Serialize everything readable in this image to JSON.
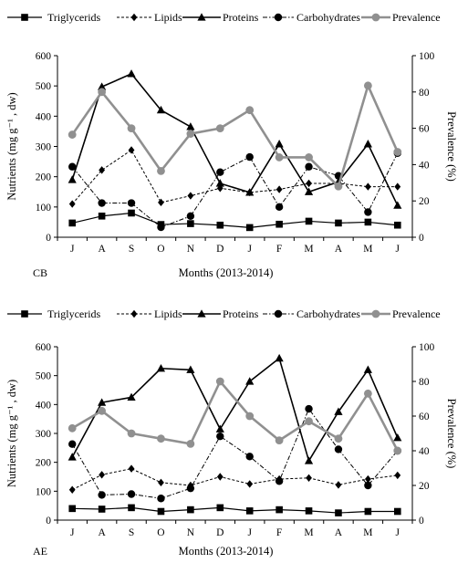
{
  "legend": [
    "Triglycerids",
    "Lipids",
    "Proteins",
    "Carbohydrates",
    "Prevalence"
  ],
  "chart_data": [
    {
      "type": "line",
      "panel_label": "CB",
      "categories": [
        "J",
        "A",
        "S",
        "O",
        "N",
        "D",
        "J",
        "F",
        "M",
        "A",
        "M",
        "J"
      ],
      "xlabel": "Months (2013-2014)",
      "ylabel": "Nutrients (mg g⁻¹ , dw)",
      "ylabel_right": "Prevalence (%)",
      "ylim": [
        0,
        600
      ],
      "yticks": [
        0,
        100,
        200,
        300,
        400,
        500,
        600
      ],
      "ylim_right": [
        0,
        100
      ],
      "yticks_right": [
        0,
        20,
        40,
        60,
        80,
        100
      ],
      "grid": false,
      "legend_position": "top",
      "series": [
        {
          "name": "Triglycerids",
          "axis": "left",
          "values": [
            47,
            70,
            80,
            42,
            45,
            40,
            32,
            43,
            53,
            47,
            50,
            40
          ]
        },
        {
          "name": "Lipids",
          "axis": "left",
          "values": [
            110,
            222,
            288,
            115,
            137,
            162,
            148,
            158,
            178,
            178,
            167,
            167
          ]
        },
        {
          "name": "Proteins",
          "axis": "left",
          "values": [
            190,
            497,
            540,
            420,
            365,
            178,
            148,
            308,
            150,
            183,
            308,
            105
          ]
        },
        {
          "name": "Carbohydrates",
          "axis": "left",
          "values": [
            233,
            113,
            113,
            33,
            70,
            215,
            265,
            100,
            233,
            203,
            83,
            278
          ]
        },
        {
          "name": "Prevalence",
          "axis": "right",
          "values": [
            56.5,
            80,
            60,
            36.5,
            57,
            60,
            70,
            44,
            44,
            28,
            83.5,
            47
          ]
        }
      ]
    },
    {
      "type": "line",
      "panel_label": "AE",
      "categories": [
        "J",
        "A",
        "S",
        "O",
        "N",
        "D",
        "J",
        "F",
        "M",
        "A",
        "M",
        "J"
      ],
      "xlabel": "Months (2013-2014)",
      "ylabel": "Nutrients (mg g⁻¹ , dw)",
      "ylabel_right": "Prevalence (%)",
      "ylim": [
        0,
        600
      ],
      "yticks": [
        0,
        100,
        200,
        300,
        400,
        500,
        600
      ],
      "ylim_right": [
        0,
        100
      ],
      "yticks_right": [
        0,
        20,
        40,
        60,
        80,
        100
      ],
      "grid": false,
      "legend_position": "top",
      "series": [
        {
          "name": "Triglycerids",
          "axis": "left",
          "values": [
            40,
            38,
            43,
            30,
            36,
            43,
            32,
            36,
            32,
            25,
            30,
            30
          ]
        },
        {
          "name": "Lipids",
          "axis": "left",
          "values": [
            105,
            157,
            178,
            130,
            120,
            150,
            125,
            142,
            146,
            122,
            142,
            155
          ]
        },
        {
          "name": "Proteins",
          "axis": "left",
          "values": [
            218,
            407,
            425,
            525,
            520,
            315,
            480,
            560,
            205,
            375,
            520,
            285
          ]
        },
        {
          "name": "Carbohydrates",
          "axis": "left",
          "values": [
            263,
            87,
            90,
            75,
            110,
            290,
            220,
            135,
            385,
            245,
            120,
            240
          ]
        },
        {
          "name": "Prevalence",
          "axis": "right",
          "values": [
            53,
            63,
            50,
            47,
            44,
            80,
            60,
            46,
            57,
            47,
            73,
            40
          ]
        }
      ]
    }
  ]
}
